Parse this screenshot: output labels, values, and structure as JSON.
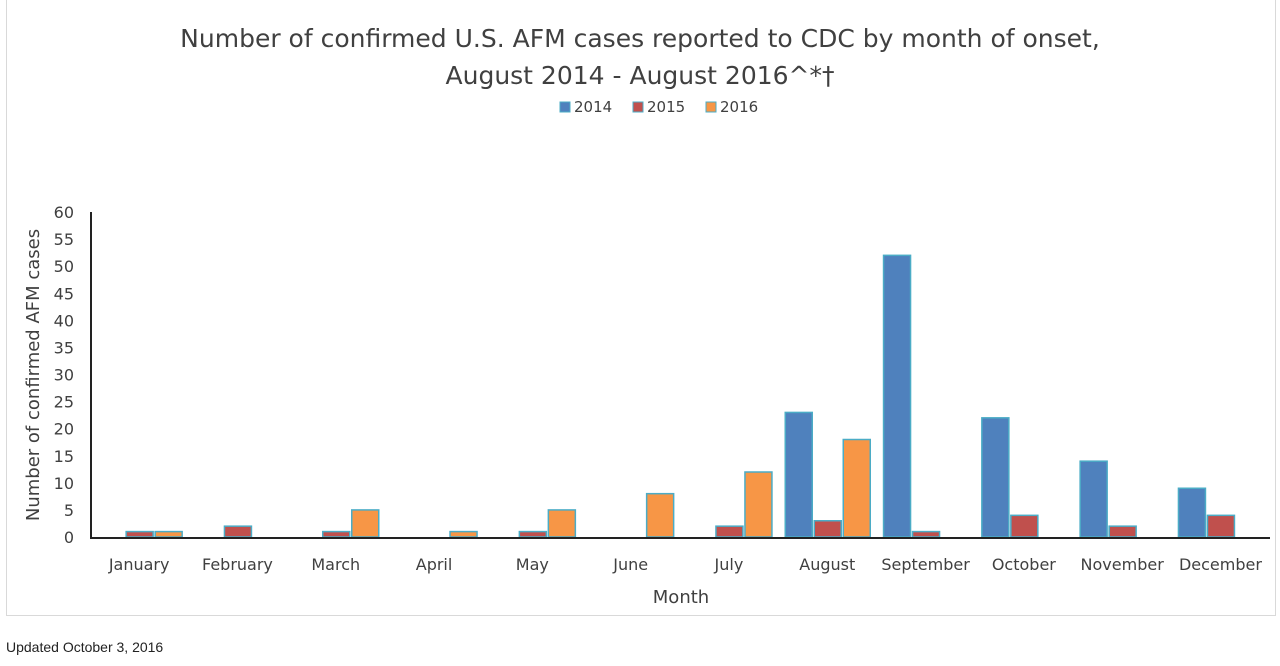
{
  "chart_data": {
    "type": "bar",
    "title": [
      "Number of confirmed U.S. AFM cases reported to CDC by month of onset,",
      "August 2014 - August 2016^*†"
    ],
    "xlabel": "Month",
    "ylabel": "Number of confirmed AFM cases",
    "ylim": [
      0,
      60
    ],
    "yticks": [
      0,
      5,
      10,
      15,
      20,
      25,
      30,
      35,
      40,
      45,
      50,
      55,
      60
    ],
    "grid": false,
    "legend": "top",
    "categories": [
      "January",
      "February",
      "March",
      "April",
      "May",
      "June",
      "July",
      "August",
      "September",
      "October",
      "November",
      "December"
    ],
    "series": [
      {
        "name": "2014",
        "color": "#4f81bd",
        "values": [
          null,
          null,
          null,
          null,
          null,
          null,
          null,
          23,
          52,
          22,
          14,
          9
        ]
      },
      {
        "name": "2015",
        "color": "#c0504d",
        "values": [
          1,
          2,
          1,
          null,
          1,
          null,
          2,
          3,
          1,
          4,
          2,
          4
        ]
      },
      {
        "name": "2016",
        "color": "#f79646",
        "values": [
          1,
          null,
          5,
          1,
          5,
          8,
          12,
          18,
          null,
          null,
          null,
          null
        ]
      }
    ],
    "bar_outline_color": "#4bacc6"
  },
  "footer": "Updated October 3, 2016"
}
